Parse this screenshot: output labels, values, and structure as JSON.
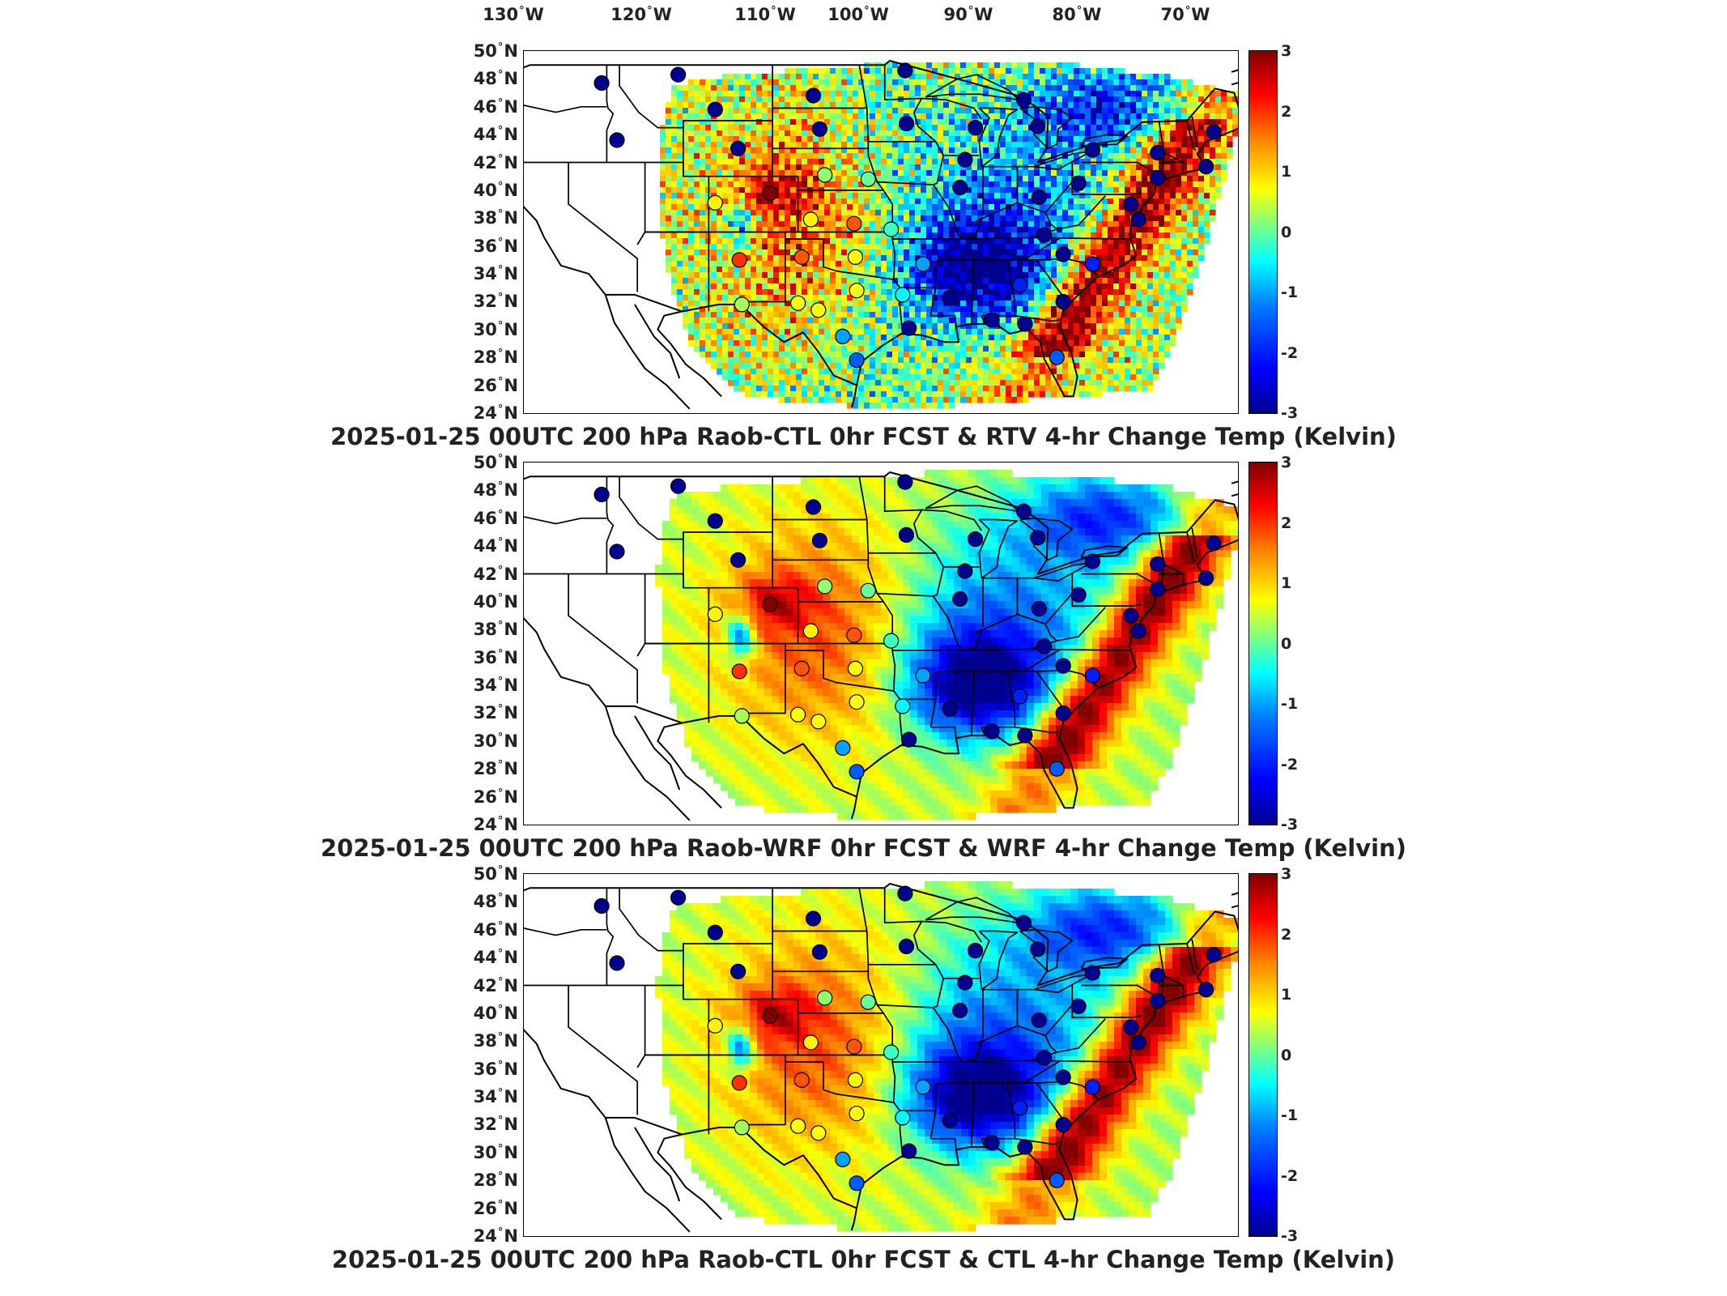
{
  "lon_labels": [
    "130",
    "120",
    "110",
    "100",
    "90",
    "80",
    "70"
  ],
  "lon_suffix": "W",
  "lat_labels": [
    "50",
    "48",
    "46",
    "44",
    "42",
    "40",
    "38",
    "36",
    "34",
    "32",
    "30",
    "28",
    "26",
    "24"
  ],
  "lat_suffix": "N",
  "colorbar_ticks": [
    "3",
    "2",
    "1",
    "0",
    "-1",
    "-2",
    "-3"
  ],
  "colorbar_range": [
    -3,
    3
  ],
  "colormap": "jet",
  "panels": [
    {
      "title": "2025-01-25 00UTC 200 hPa Raob-CTL 0hr FCST & RTV 4-hr Change Temp (Kelvin)",
      "field_style": "noisy"
    },
    {
      "title": "2025-01-25 00UTC 200 hPa Raob-WRF 0hr FCST & WRF 4-hr Change Temp (Kelvin)",
      "field_style": "smooth"
    },
    {
      "title": "2025-01-25 00UTC 200 hPa Raob-CTL 0hr FCST & CTL 4-hr Change Temp (Kelvin)",
      "field_style": "smooth"
    }
  ],
  "colors": {
    "dark_blue": "#00008f",
    "blue": "#0060ff",
    "cyan": "#40d8ff",
    "yellow": "#ffe000",
    "orange": "#ff7f00",
    "red": "#ee1010",
    "dark_red": "#8b0000",
    "border": "#000000"
  },
  "stations": [
    {
      "lon": -117.4,
      "lat": 47.7,
      "value": -3
    },
    {
      "lon": -111.4,
      "lat": 48.3,
      "value": -3
    },
    {
      "lon": -100.8,
      "lat": 46.8,
      "value": -3
    },
    {
      "lon": -93.6,
      "lat": 48.6,
      "value": -3
    },
    {
      "lon": -116.2,
      "lat": 43.6,
      "value": -3
    },
    {
      "lon": -108.5,
      "lat": 45.8,
      "value": -3
    },
    {
      "lon": -106.7,
      "lat": 43.0,
      "value": -3
    },
    {
      "lon": -100.3,
      "lat": 44.4,
      "value": -3
    },
    {
      "lon": -93.5,
      "lat": 44.8,
      "value": -3
    },
    {
      "lon": -88.1,
      "lat": 44.5,
      "value": -3
    },
    {
      "lon": -84.3,
      "lat": 46.5,
      "value": -3
    },
    {
      "lon": -83.2,
      "lat": 44.6,
      "value": -3
    },
    {
      "lon": -78.9,
      "lat": 42.9,
      "value": -3
    },
    {
      "lon": -73.8,
      "lat": 42.7,
      "value": -3
    },
    {
      "lon": -69.4,
      "lat": 44.2,
      "value": -3
    },
    {
      "lon": -70.0,
      "lat": 41.7,
      "value": -3
    },
    {
      "lon": -73.8,
      "lat": 40.9,
      "value": -3
    },
    {
      "lon": -88.9,
      "lat": 42.2,
      "value": -3
    },
    {
      "lon": -89.3,
      "lat": 40.2,
      "value": -3
    },
    {
      "lon": -83.1,
      "lat": 39.5,
      "value": -3
    },
    {
      "lon": -80.0,
      "lat": 40.5,
      "value": -3
    },
    {
      "lon": -75.9,
      "lat": 39.0,
      "value": -3
    },
    {
      "lon": -75.3,
      "lat": 37.9,
      "value": -3
    },
    {
      "lon": -82.7,
      "lat": 36.8,
      "value": -3
    },
    {
      "lon": -81.2,
      "lat": 35.4,
      "value": -3
    },
    {
      "lon": -78.9,
      "lat": 34.7,
      "value": -2
    },
    {
      "lon": -81.2,
      "lat": 32.0,
      "value": -3
    },
    {
      "lon": -84.6,
      "lat": 33.2,
      "value": -2
    },
    {
      "lon": -86.8,
      "lat": 30.7,
      "value": -3
    },
    {
      "lon": -90.1,
      "lat": 32.3,
      "value": -3
    },
    {
      "lon": -93.3,
      "lat": 30.1,
      "value": -3
    },
    {
      "lon": -84.2,
      "lat": 30.4,
      "value": -3
    },
    {
      "lon": -81.7,
      "lat": 28.0,
      "value": -1.5
    },
    {
      "lon": -97.4,
      "lat": 27.8,
      "value": -1.5
    },
    {
      "lon": -92.2,
      "lat": 34.7,
      "value": -1
    },
    {
      "lon": -97.5,
      "lat": 35.2,
      "value": 0.7
    },
    {
      "lon": -97.4,
      "lat": 32.8,
      "value": 0.7
    },
    {
      "lon": -93.8,
      "lat": 32.5,
      "value": -0.5
    },
    {
      "lon": -94.7,
      "lat": 37.2,
      "value": -0.2
    },
    {
      "lon": -97.6,
      "lat": 37.6,
      "value": 1.8
    },
    {
      "lon": -101.7,
      "lat": 35.2,
      "value": 1.8
    },
    {
      "lon": -104.2,
      "lat": 39.8,
      "value": 3
    },
    {
      "lon": -108.5,
      "lat": 39.1,
      "value": 0.8
    },
    {
      "lon": -106.6,
      "lat": 35.0,
      "value": 2.0
    },
    {
      "lon": -102.0,
      "lat": 31.9,
      "value": 0.7
    },
    {
      "lon": -106.4,
      "lat": 31.8,
      "value": 0.3
    },
    {
      "lon": -100.4,
      "lat": 31.4,
      "value": 0.7
    },
    {
      "lon": -98.5,
      "lat": 29.5,
      "value": -1
    },
    {
      "lon": -96.5,
      "lat": 40.8,
      "value": 0
    },
    {
      "lon": -99.9,
      "lat": 41.1,
      "value": 0.2
    },
    {
      "lon": -101.0,
      "lat": 37.9,
      "value": 0.8
    }
  ]
}
